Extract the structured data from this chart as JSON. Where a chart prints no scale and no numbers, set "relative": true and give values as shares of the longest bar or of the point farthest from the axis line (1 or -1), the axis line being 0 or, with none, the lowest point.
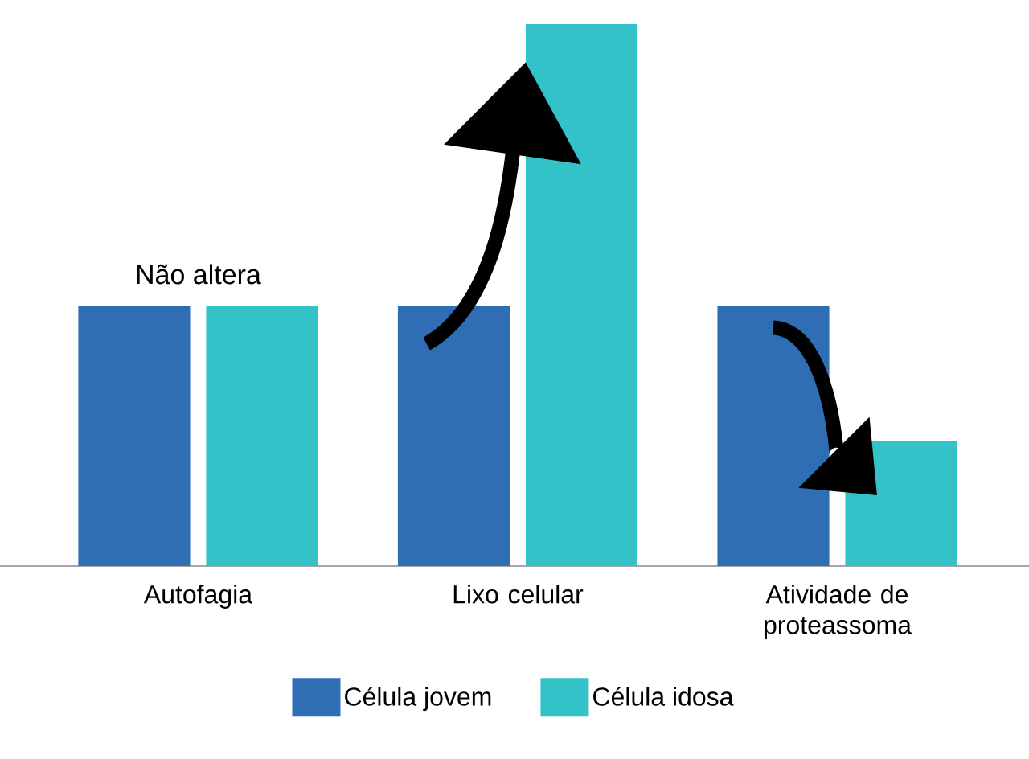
{
  "chart_data": {
    "type": "bar",
    "relative": true,
    "categories": [
      "Autofagia",
      "Lixo celular",
      "Atividade de proteassoma"
    ],
    "series": [
      {
        "name": "Célula jovem",
        "color": "#2f6db5",
        "values": [
          0.48,
          0.48,
          0.48
        ]
      },
      {
        "name": "Célula idosa",
        "color": "#33c2c7",
        "values": [
          0.48,
          1,
          0.23
        ]
      }
    ],
    "annotations": [
      {
        "text": "Não altera",
        "x": "Autofagia",
        "y": 0.48
      }
    ],
    "legend": "bottom"
  }
}
